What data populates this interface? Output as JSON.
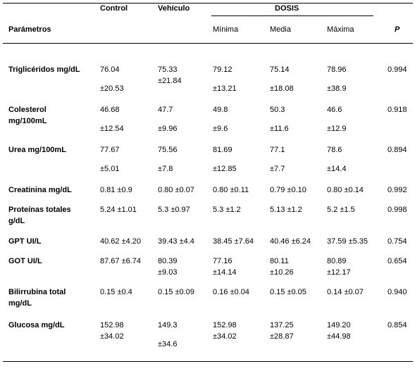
{
  "header": {
    "control": "Control",
    "vehiculo": "Vehículo",
    "dosis": "DOSIS",
    "parametros": "Parámetros",
    "minima": "Mínima",
    "media": "Media",
    "maxima": "Máxima",
    "p": "P"
  },
  "rows": [
    {
      "label": [
        "Triglicéridos mg/dL"
      ],
      "values": [
        [
          "76.04",
          "±20.53"
        ],
        [
          "75.33",
          "±21.84"
        ],
        [
          "79.12",
          "±13.21"
        ],
        [
          "75.14",
          "±18.08"
        ],
        [
          "78.96",
          "±38.9"
        ]
      ],
      "p": "0.994"
    },
    {
      "label": [
        "Colesterol",
        "mg/100mL"
      ],
      "values": [
        [
          "46.68",
          "±12.54"
        ],
        [
          "47.7",
          "±9.96"
        ],
        [
          "49.8",
          "±9.6"
        ],
        [
          "50.3",
          "±11.6"
        ],
        [
          "46.6",
          "±12.9"
        ]
      ],
      "p": "0.918"
    },
    {
      "label": [
        "Urea mg/100mL"
      ],
      "values": [
        [
          "77.67",
          "±5.01"
        ],
        [
          "75.56",
          "±7.8"
        ],
        [
          "81.69",
          "±12.85"
        ],
        [
          "77.1",
          "±7.7"
        ],
        [
          "78.6",
          "±14.4"
        ]
      ],
      "p": "0.894"
    },
    {
      "label": [
        "Creatinina mg/dL"
      ],
      "values": [
        [
          "0.81 ±0.9"
        ],
        [
          "0.80 ±0.07"
        ],
        [
          "0.80 ±0.11"
        ],
        [
          "0.79 ±0.10"
        ],
        [
          "0.80 ±0.14"
        ]
      ],
      "p": "0.992"
    },
    {
      "label": [
        "Proteínas totales",
        "g/dL"
      ],
      "values": [
        [
          "5.24 ±1.01"
        ],
        [
          "5.3 ±0.97"
        ],
        [
          "5.3 ±1.2"
        ],
        [
          "5.13 ±1.2"
        ],
        [
          "5.2 ±1.5"
        ]
      ],
      "p": "0.998"
    },
    {
      "label": [
        "GPT UI/L"
      ],
      "values": [
        [
          "40.62 ±4.20"
        ],
        [
          "39.43 ±4.4"
        ],
        [
          "38.45 ±7.64"
        ],
        [
          "40.46 ±6.24"
        ],
        [
          "37.59 ±5.35"
        ]
      ],
      "p": "0.754"
    },
    {
      "label": [
        "GOT UI/L"
      ],
      "values": [
        [
          "87.67 ±6.74"
        ],
        [
          "80.39",
          "±9.03"
        ],
        [
          "77.16",
          "±14.14"
        ],
        [
          "80.11",
          "±10.26"
        ],
        [
          "80.89",
          "±12.17"
        ]
      ],
      "p": "0.654"
    },
    {
      "label": [
        "Bilirrubina total",
        "mg/dL"
      ],
      "values": [
        [
          "0.15 ±0.4"
        ],
        [
          "0.15 ±0.09"
        ],
        [
          "0.16 ±0.04"
        ],
        [
          "0.15 ±0.05"
        ],
        [
          "0.14 ±0.07"
        ]
      ],
      "p": "0.940"
    },
    {
      "label": [
        "Glucosa mg/dL"
      ],
      "values": [
        [
          "152.98",
          "±34.02"
        ],
        [
          "149.3",
          "±34.6"
        ],
        [
          "152.98",
          "±34.02"
        ],
        [
          "137.25",
          "±28.87"
        ],
        [
          "149.20",
          "±44.98"
        ]
      ],
      "p": "0.854"
    }
  ]
}
